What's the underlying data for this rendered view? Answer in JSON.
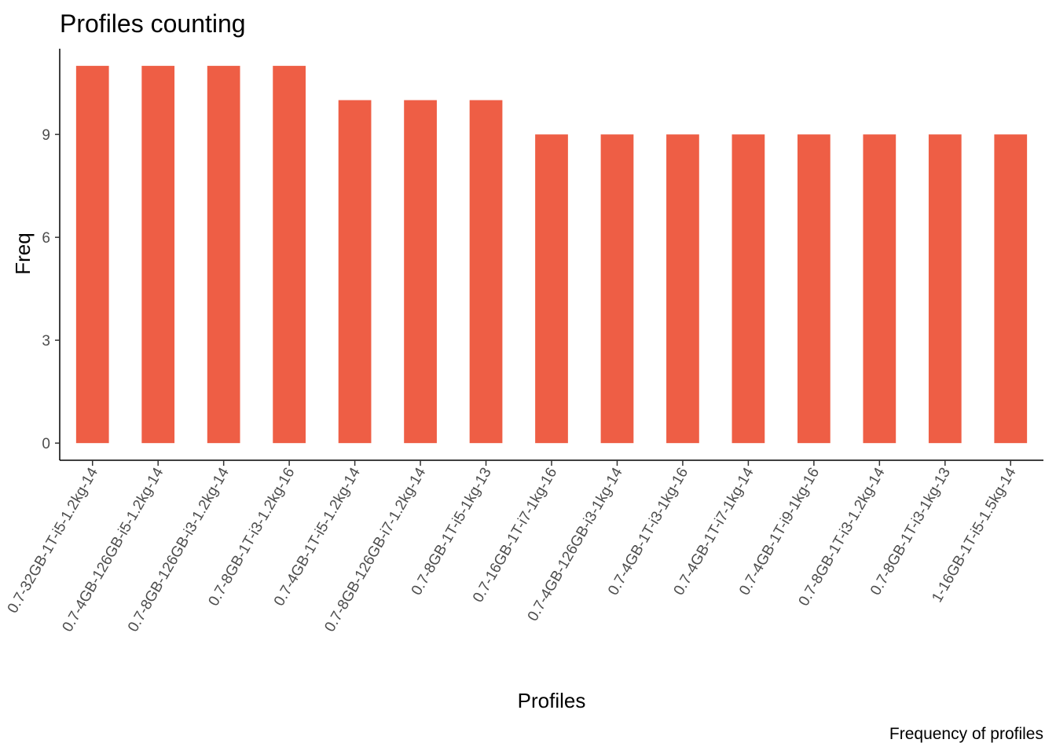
{
  "chart_data": {
    "type": "bar",
    "title": "Profiles counting",
    "xlabel": "Profiles",
    "ylabel": "Freq",
    "caption": "Frequency of profiles",
    "categories": [
      "0.7-32GB-1T-i5-1.2kg-14",
      "0.7-4GB-126GB-i5-1.2kg-14",
      "0.7-8GB-126GB-i3-1.2kg-14",
      "0.7-8GB-1T-i3-1.2kg-16",
      "0.7-4GB-1T-i5-1.2kg-14",
      "0.7-8GB-126GB-i7-1.2kg-14",
      "0.7-8GB-1T-i5-1kg-13",
      "0.7-16GB-1T-i7-1kg-16",
      "0.7-4GB-126GB-i3-1kg-14",
      "0.7-4GB-1T-i3-1kg-16",
      "0.7-4GB-1T-i7-1kg-14",
      "0.7-4GB-1T-i9-1kg-16",
      "0.7-8GB-1T-i3-1.2kg-14",
      "0.7-8GB-1T-i3-1kg-13",
      "1-16GB-1T-i5-1.5kg-14"
    ],
    "values": [
      11,
      11,
      11,
      11,
      10,
      10,
      10,
      9,
      9,
      9,
      9,
      9,
      9,
      9,
      9
    ],
    "yticks": [
      0,
      3,
      6,
      9
    ],
    "ylim": [
      -0.5,
      11.5
    ],
    "bar_color": "#EE5E45",
    "grid": false,
    "legend": "none"
  }
}
